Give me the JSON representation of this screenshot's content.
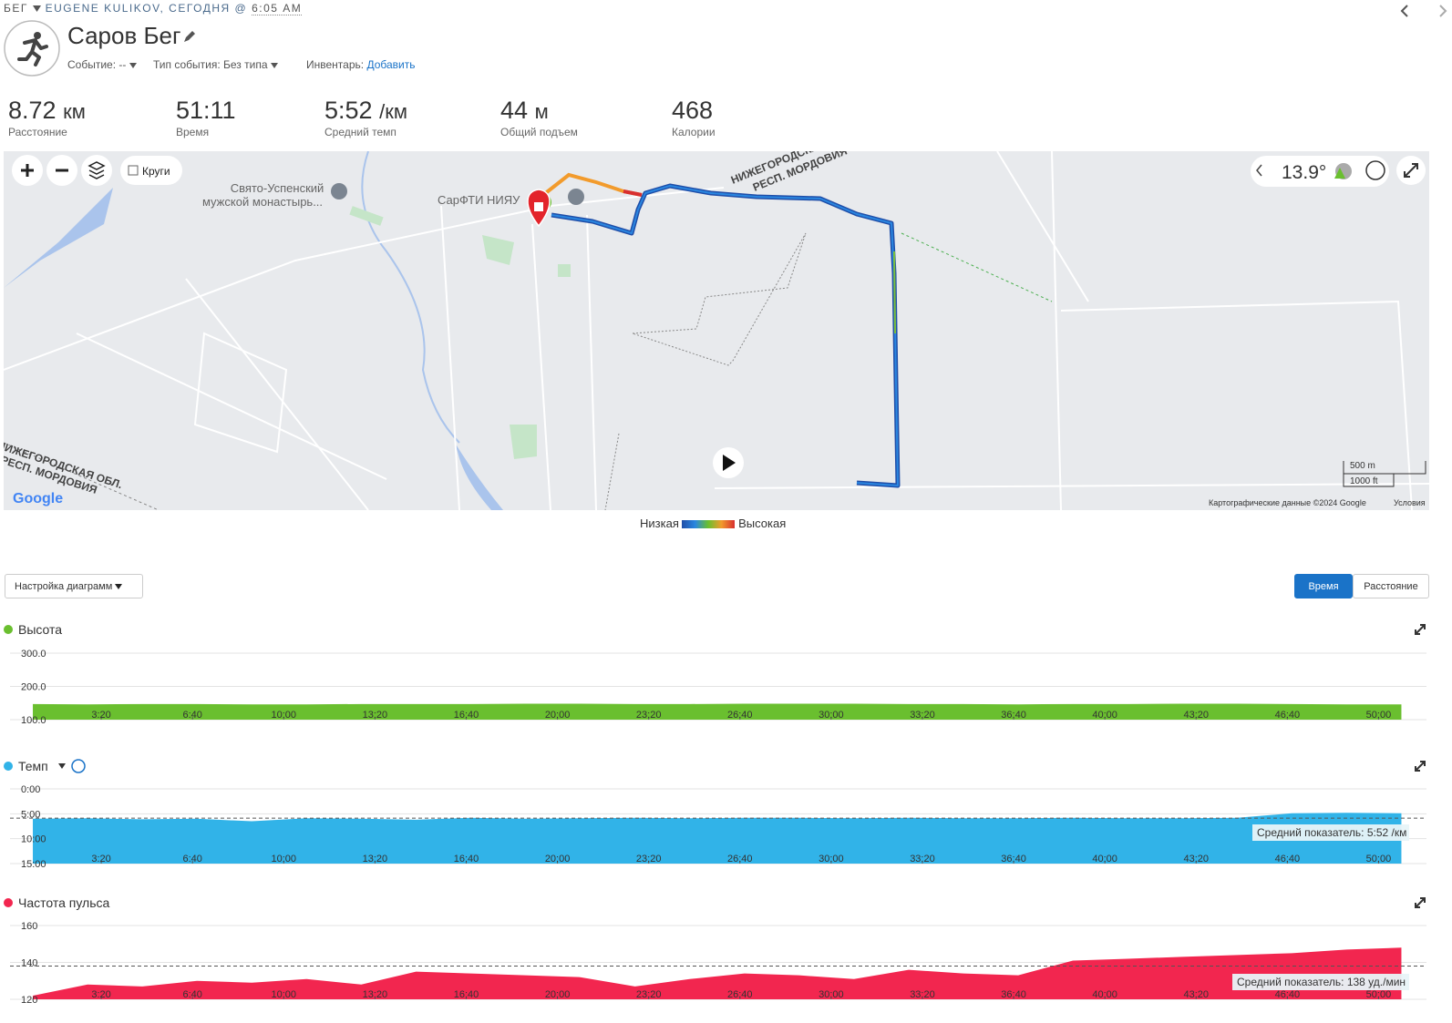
{
  "header": {
    "activity_type": "БЕГ",
    "owner": "EUGENE KULIKOV, СЕГОДНЯ @",
    "time": "6:05 AM",
    "title": "Саров Бег",
    "event_label": "Событие: --",
    "event_type_label": "Тип события: Без типа",
    "gear_label": "Инвентарь:",
    "gear_action": "Добавить"
  },
  "stats": [
    {
      "value": "8.72",
      "unit": "км",
      "label": "Расстояние"
    },
    {
      "value": "51:11",
      "label": "Время"
    },
    {
      "value": "5:52",
      "unit": "/км",
      "label": "Средний темп"
    },
    {
      "value": "44",
      "unit": "м",
      "label": "Общий подъем"
    },
    {
      "value": "468",
      "label": "Калории"
    }
  ],
  "map": {
    "laps_label": "Круги",
    "poi_monastery": [
      "Свято-Успенский",
      "мужской монастырь..."
    ],
    "poi_institute": "СарФТИ НИЯУ",
    "region_top": [
      "НИЖЕГОРОДСКАЯ ОБЛ.",
      "РЕСП. МОРДОВИЯ"
    ],
    "region_left": [
      "НИЖЕГОРОДСКАЯ ОБЛ.",
      "РЕСП. МОРДОВИЯ"
    ],
    "temperature": "13.9°",
    "scale_metric": "500 m",
    "scale_imperial": "1000 ft",
    "logo": "Google",
    "attribution": "Картографические данные ©2024 Google",
    "terms": "Условия",
    "legend_low": "Низкая",
    "legend_high": "Высокая"
  },
  "controls": {
    "chart_settings": "Настройка диаграмм",
    "time_tab": "Время",
    "distance_tab": "Расстояние"
  },
  "chart_data": [
    {
      "type": "area",
      "title": "Высота",
      "color": "#6abf2f",
      "x": [
        50,
        170,
        290,
        410,
        530,
        650,
        770,
        890,
        1010,
        1130,
        1250,
        1370,
        1490,
        1610,
        1730,
        1850,
        1970,
        2090,
        2210,
        2330,
        2450,
        2570,
        2690,
        2810,
        2930,
        3050
      ],
      "values": [
        147,
        146,
        147,
        147,
        146,
        146,
        147,
        147,
        147,
        148,
        148,
        147,
        147,
        148,
        148,
        148,
        147,
        147,
        146,
        147,
        147,
        148,
        148,
        147,
        146,
        146
      ],
      "xlim": [
        0,
        3105
      ],
      "ylim": [
        100,
        300
      ],
      "yticks": [
        {
          "value": 300,
          "label": "300.0"
        },
        {
          "value": 200,
          "label": "200.0"
        },
        {
          "value": 100,
          "label": "100.0"
        }
      ],
      "xticks": [
        {
          "value": 200,
          "label": "3:20"
        },
        {
          "value": 400,
          "label": "6:40"
        },
        {
          "value": 600,
          "label": "10:00"
        },
        {
          "value": 800,
          "label": "13:20"
        },
        {
          "value": 1000,
          "label": "16:40"
        },
        {
          "value": 1200,
          "label": "20:00"
        },
        {
          "value": 1400,
          "label": "23:20"
        },
        {
          "value": 1600,
          "label": "26:40"
        },
        {
          "value": 1800,
          "label": "30:00"
        },
        {
          "value": 2000,
          "label": "33:20"
        },
        {
          "value": 2200,
          "label": "36:40"
        },
        {
          "value": 2400,
          "label": "40:00"
        },
        {
          "value": 2600,
          "label": "43:20"
        },
        {
          "value": 2800,
          "label": "46:40"
        },
        {
          "value": 3000,
          "label": "50:00"
        }
      ]
    },
    {
      "type": "area",
      "title": "Темп",
      "color": "#31b3e8",
      "x": [
        50,
        170,
        290,
        410,
        530,
        650,
        770,
        890,
        1010,
        1130,
        1250,
        1370,
        1490,
        1610,
        1730,
        1850,
        1970,
        2090,
        2210,
        2330,
        2450,
        2570,
        2690,
        2810,
        2930,
        3050
      ],
      "values": [
        6.0,
        5.9,
        6.1,
        6.0,
        6.5,
        5.9,
        6.0,
        6.2,
        5.8,
        6.0,
        5.9,
        5.8,
        5.9,
        5.8,
        5.8,
        5.9,
        5.8,
        5.9,
        5.9,
        5.8,
        5.9,
        5.9,
        5.8,
        4.9,
        4.8,
        4.9
      ],
      "xlim": [
        0,
        3105
      ],
      "ylim": [
        15,
        0
      ],
      "yticks": [
        {
          "value": 0,
          "label": "0:00"
        },
        {
          "value": 5,
          "label": "5:00"
        },
        {
          "value": 10,
          "label": "10:00"
        },
        {
          "value": 15,
          "label": "15:00"
        }
      ],
      "xticks": [
        {
          "value": 200,
          "label": "3:20"
        },
        {
          "value": 400,
          "label": "6:40"
        },
        {
          "value": 600,
          "label": "10:00"
        },
        {
          "value": 800,
          "label": "13:20"
        },
        {
          "value": 1000,
          "label": "16:40"
        },
        {
          "value": 1200,
          "label": "20:00"
        },
        {
          "value": 1400,
          "label": "23:20"
        },
        {
          "value": 1600,
          "label": "26:40"
        },
        {
          "value": 1800,
          "label": "30:00"
        },
        {
          "value": 2000,
          "label": "33:20"
        },
        {
          "value": 2200,
          "label": "36:40"
        },
        {
          "value": 2400,
          "label": "40:00"
        },
        {
          "value": 2600,
          "label": "43:20"
        },
        {
          "value": 2800,
          "label": "46:40"
        },
        {
          "value": 3000,
          "label": "50:00"
        }
      ],
      "average": {
        "value": 5.87,
        "label": "Средний показатель: 5:52 /км"
      }
    },
    {
      "type": "area",
      "title": "Частота пульса",
      "color": "#f2264f",
      "x": [
        50,
        170,
        290,
        410,
        530,
        650,
        770,
        890,
        1010,
        1130,
        1250,
        1370,
        1490,
        1610,
        1730,
        1850,
        1970,
        2090,
        2210,
        2330,
        2450,
        2570,
        2690,
        2810,
        2930,
        3050
      ],
      "values": [
        122,
        128,
        127,
        130,
        129,
        131,
        128,
        135,
        134,
        133,
        132,
        127,
        131,
        134,
        133,
        131,
        136,
        134,
        133,
        141,
        142,
        143,
        144,
        145,
        147,
        148
      ],
      "xlim": [
        0,
        3105
      ],
      "ylim": [
        120,
        160
      ],
      "yticks": [
        160,
        140,
        120
      ],
      "xticks": [
        {
          "value": 200,
          "label": "3:20"
        },
        {
          "value": 400,
          "label": "6:40"
        },
        {
          "value": 600,
          "label": "10:00"
        },
        {
          "value": 800,
          "label": "13:20"
        },
        {
          "value": 1000,
          "label": "16:40"
        },
        {
          "value": 1200,
          "label": "20:00"
        },
        {
          "value": 1400,
          "label": "23:20"
        },
        {
          "value": 1600,
          "label": "26:40"
        },
        {
          "value": 1800,
          "label": "30:00"
        },
        {
          "value": 2000,
          "label": "33:20"
        },
        {
          "value": 2200,
          "label": "36:40"
        },
        {
          "value": 2400,
          "label": "40:00"
        },
        {
          "value": 2600,
          "label": "43:20"
        },
        {
          "value": 2800,
          "label": "46:40"
        },
        {
          "value": 3000,
          "label": "50:00"
        }
      ],
      "average": {
        "value": 138,
        "label": "Средний показатель: 138 уд./мин"
      }
    }
  ]
}
